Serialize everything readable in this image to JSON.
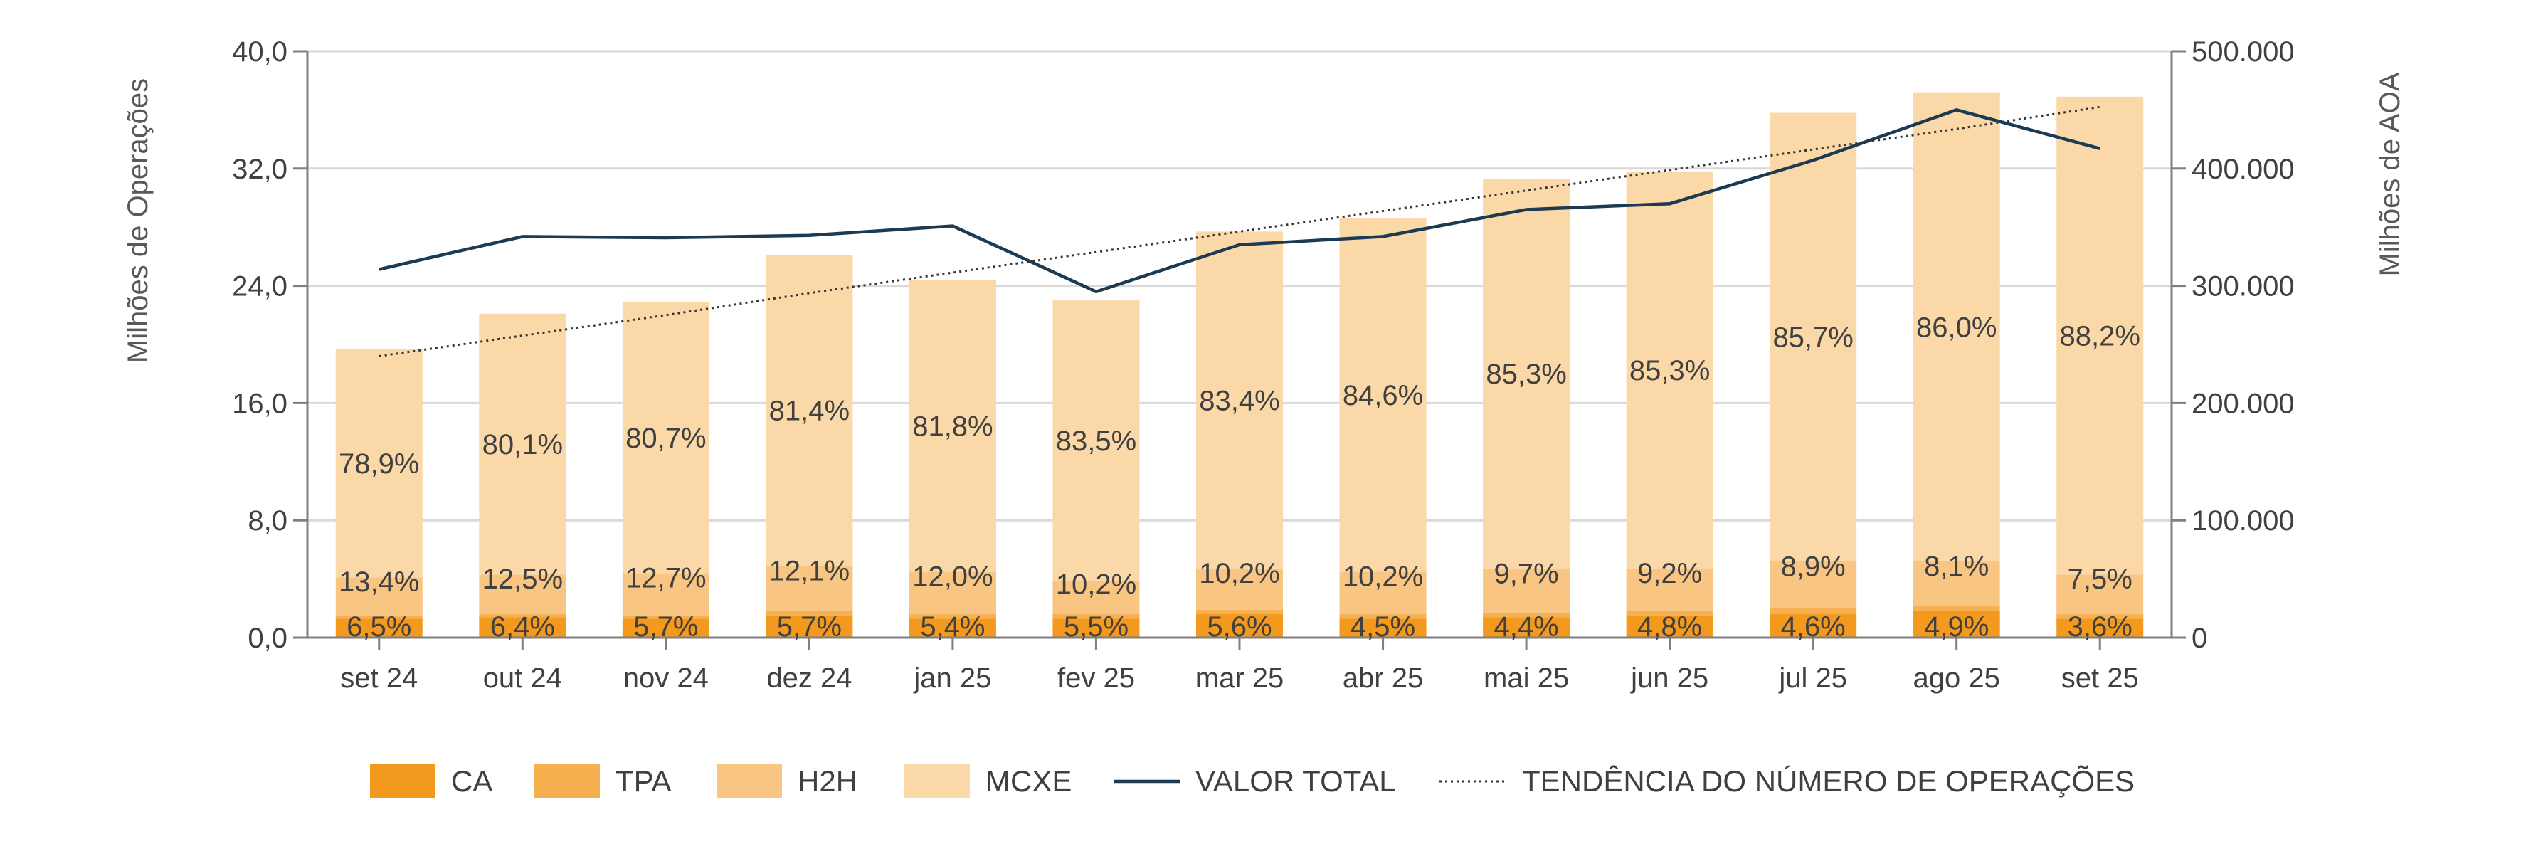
{
  "chart_data": {
    "type": "bar",
    "stacked": true,
    "categories": [
      "set 24",
      "out 24",
      "nov 24",
      "dez 24",
      "jan 25",
      "fev 25",
      "mar 25",
      "abr 25",
      "mai 25",
      "jun 25",
      "jul 25",
      "ago 25",
      "set 25"
    ],
    "ylabel": "Milhões de Operações",
    "y2label": "Milhões de AOA",
    "ylim": [
      0,
      40
    ],
    "y2lim": [
      0,
      500000
    ],
    "yticks": [
      "0,0",
      "8,0",
      "16,0",
      "24,0",
      "32,0",
      "40,0"
    ],
    "y2ticks": [
      "0",
      "100.000",
      "200.000",
      "300.000",
      "400.000",
      "500.000"
    ],
    "grid": true,
    "legend_position": "bottom",
    "colors": {
      "CA": "#f39a1e",
      "TPA": "#f7b050",
      "H2H": "#f9c583",
      "MCXE": "#fbd8a8",
      "line": "#1c3b53",
      "trend": "#333333",
      "grid": "#d9d9d9",
      "axis": "#7f7f7f",
      "text": "#404040"
    },
    "series": [
      {
        "name": "CA",
        "axis": "left",
        "pct_labels": [
          "6,5%",
          "6,4%",
          "5,7%",
          "5,7%",
          "5,4%",
          "5,5%",
          "5,6%",
          "4,5%",
          "4,4%",
          "4,8%",
          "4,6%",
          "4,9%",
          "3,6%"
        ],
        "values": [
          1.3,
          1.4,
          1.3,
          1.5,
          1.3,
          1.3,
          1.6,
          1.3,
          1.4,
          1.5,
          1.6,
          1.8,
          1.3
        ]
      },
      {
        "name": "TPA",
        "axis": "left",
        "pct_labels": [],
        "values": [
          0.2,
          0.2,
          0.2,
          0.3,
          0.3,
          0.3,
          0.3,
          0.3,
          0.3,
          0.3,
          0.4,
          0.4,
          0.3
        ]
      },
      {
        "name": "H2H",
        "axis": "left",
        "pct_labels": [
          "13,4%",
          "12,5%",
          "12,7%",
          "12,1%",
          "12,0%",
          "10,2%",
          "10,2%",
          "10,2%",
          "9,7%",
          "9,2%",
          "8,9%",
          "8,1%",
          "7,5%"
        ],
        "values": [
          2.6,
          2.7,
          2.9,
          3.1,
          2.9,
          2.3,
          2.8,
          2.9,
          3.0,
          2.9,
          3.2,
          3.0,
          2.7
        ]
      },
      {
        "name": "MCXE",
        "axis": "left",
        "pct_labels": [
          "78,9%",
          "80,1%",
          "80,7%",
          "81,4%",
          "81,8%",
          "83,5%",
          "83,4%",
          "84,6%",
          "85,3%",
          "85,3%",
          "85,7%",
          "86,0%",
          "88,2%"
        ],
        "values": [
          15.6,
          17.8,
          18.5,
          21.2,
          19.9,
          19.1,
          23.0,
          24.1,
          26.6,
          27.1,
          30.6,
          32.0,
          32.6
        ]
      },
      {
        "name": "VALOR TOTAL",
        "type": "line",
        "axis": "right",
        "values": [
          314000,
          342000,
          341000,
          343000,
          351000,
          295000,
          335000,
          342000,
          365000,
          370000,
          407000,
          450000,
          417000
        ]
      },
      {
        "name": "TENDÊNCIA DO NÚMERO DE OPERAÇÕES",
        "type": "line",
        "style": "dotted",
        "axis": "left",
        "values": [
          19.2,
          20.6,
          22.0,
          23.5,
          24.9,
          26.3,
          27.7,
          29.1,
          30.5,
          31.9,
          33.3,
          34.7,
          36.2
        ]
      }
    ]
  }
}
